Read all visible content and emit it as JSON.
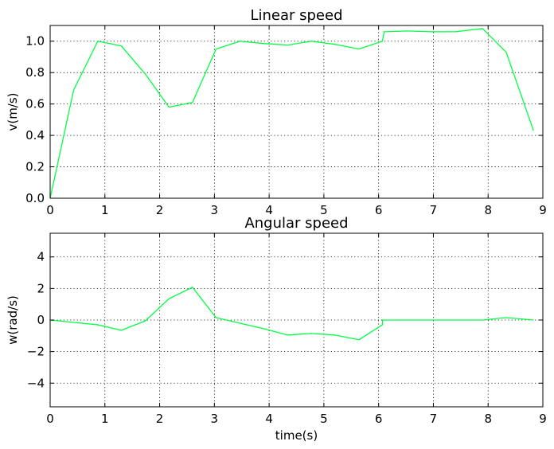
{
  "chart_data": [
    {
      "type": "line",
      "title": "Linear speed",
      "xlabel": "",
      "ylabel": "v(m/s)",
      "xlim": [
        0,
        9
      ],
      "ylim": [
        0,
        1.1
      ],
      "xticks": [
        "0",
        "1",
        "2",
        "3",
        "4",
        "5",
        "6",
        "7",
        "8",
        "9"
      ],
      "yticks": [
        "0.0",
        "0.2",
        "0.4",
        "0.6",
        "0.8",
        "1.0"
      ],
      "grid": true,
      "line_color": "#00ff44",
      "series": [
        {
          "x": [
            0,
            0.43,
            0.87,
            1.3,
            1.74,
            2.17,
            2.6,
            3.03,
            3.47,
            3.9,
            4.34,
            4.77,
            5.2,
            5.64,
            6.07,
            6.07,
            6.1,
            6.53,
            6.97,
            7.4,
            7.9,
            8.33,
            8.83
          ],
          "y": [
            0.0,
            0.69,
            1.0,
            0.97,
            0.79,
            0.58,
            0.61,
            0.95,
            1.0,
            0.985,
            0.975,
            1.0,
            0.98,
            0.95,
            1.0,
            1.0,
            1.06,
            1.065,
            1.06,
            1.06,
            1.08,
            0.93,
            0.43
          ]
        }
      ]
    },
    {
      "type": "line",
      "title": "Angular speed",
      "xlabel": "time(s)",
      "ylabel": "w(rad/s)",
      "xlim": [
        0,
        9
      ],
      "ylim": [
        -5.5,
        5.5
      ],
      "xticks": [
        "0",
        "1",
        "2",
        "3",
        "4",
        "5",
        "6",
        "7",
        "8",
        "9"
      ],
      "yticks": [
        "−4",
        "−2",
        "0",
        "2",
        "4"
      ],
      "grid": true,
      "line_color": "#00ff44",
      "series": [
        {
          "x": [
            0,
            0.43,
            0.87,
            1.3,
            1.74,
            2.17,
            2.6,
            3.03,
            3.47,
            3.9,
            4.34,
            4.77,
            5.2,
            5.64,
            6.07,
            6.07,
            6.53,
            6.97,
            7.4,
            7.9,
            8.33,
            8.83
          ],
          "y": [
            0.0,
            -0.15,
            -0.3,
            -0.65,
            -0.05,
            1.35,
            2.08,
            0.15,
            -0.2,
            -0.55,
            -0.95,
            -0.85,
            -0.95,
            -1.25,
            -0.3,
            0.0,
            0.0,
            0.0,
            0.0,
            0.0,
            0.15,
            0.0
          ]
        }
      ]
    }
  ]
}
